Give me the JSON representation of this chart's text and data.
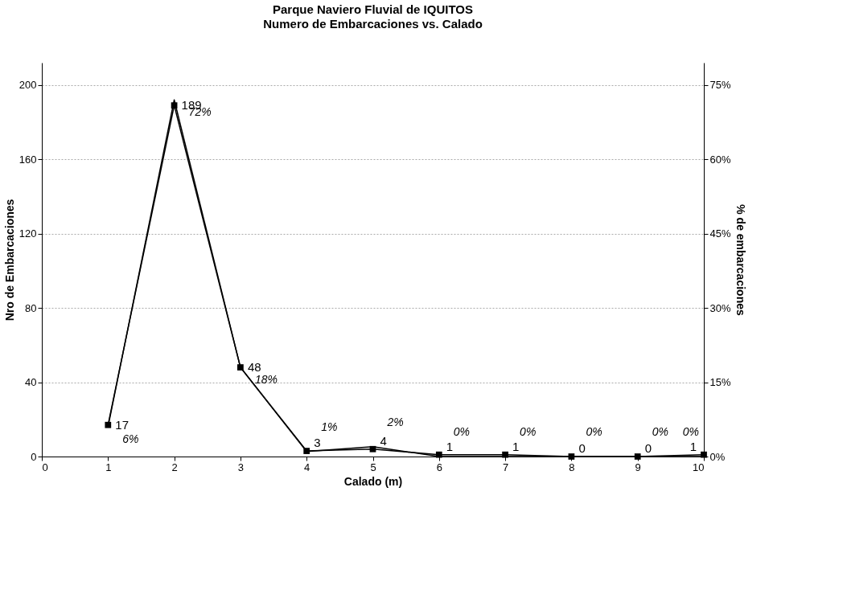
{
  "chart_data": {
    "type": "line",
    "title": "Parque Naviero Fluvial de IQUITOS",
    "subtitle": "Numero de Embarcaciones vs. Calado",
    "xlabel": "Calado (m)",
    "ylabel": "Nro de Embarcaciones",
    "y2label": "% de embarcaciones",
    "x": [
      1,
      2,
      3,
      4,
      5,
      6,
      7,
      8,
      9,
      10
    ],
    "xlim": [
      0,
      10
    ],
    "xticks": [
      0,
      1,
      2,
      3,
      4,
      5,
      6,
      7,
      8,
      9,
      10
    ],
    "ylim": [
      0,
      212
    ],
    "yticks": [
      0,
      40,
      80,
      120,
      160,
      200
    ],
    "y2lim": [
      0,
      79.5
    ],
    "y2ticks": [
      {
        "value": 0,
        "label": "0%"
      },
      {
        "value": 15,
        "label": "15%"
      },
      {
        "value": 30,
        "label": "30%"
      },
      {
        "value": 45,
        "label": "45%"
      },
      {
        "value": 60,
        "label": "60%"
      },
      {
        "value": 75,
        "label": "75%"
      }
    ],
    "grid": "y",
    "line_style": "solid",
    "series": [
      {
        "color": "#000000",
        "marker": "square",
        "values": [
          17,
          189,
          48,
          3,
          4,
          1,
          1,
          0,
          0,
          1
        ],
        "value_labels": [
          "17",
          "189",
          "48",
          "3",
          "4",
          "1",
          "1",
          "0",
          "0",
          "1"
        ]
      },
      {
        "axis": "y2",
        "color": "#000000",
        "marker": "none",
        "values": [
          6,
          72,
          18,
          1,
          2,
          0,
          0,
          0,
          0,
          0
        ],
        "value_labels": [
          "6%",
          "72%",
          "18%",
          "1%",
          "2%",
          "0%",
          "0%",
          "0%",
          "0%",
          "0%"
        ]
      }
    ]
  }
}
